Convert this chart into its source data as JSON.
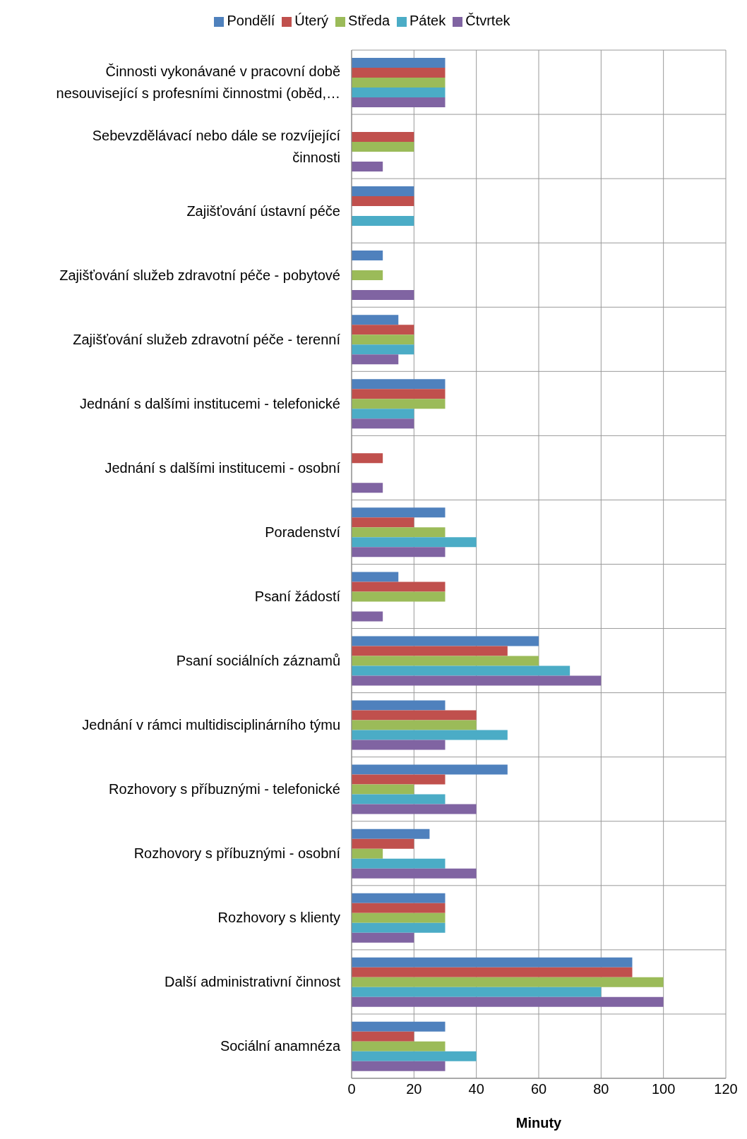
{
  "chart_data": {
    "type": "bar",
    "orientation": "horizontal",
    "xlabel": "Minuty",
    "xlim": [
      0,
      120
    ],
    "xticks": [
      0,
      20,
      40,
      60,
      80,
      100,
      120
    ],
    "grid": true,
    "legend": "top",
    "categories": [
      "Činnosti vykonávané v pracovní době nesouvisející s profesními činnostmi (oběd,…",
      "Sebevzdělávací nebo dále se rozvíjející činnosti",
      "Zajišťování ústavní péče",
      "Zajišťování služeb zdravotní péče - pobytové",
      "Zajišťování služeb zdravotní péče - terenní",
      "Jednání s dalšími institucemi - telefonické",
      "Jednání s dalšími institucemi - osobní",
      "Poradenství",
      "Psaní žádostí",
      "Psaní sociálních záznamů",
      "Jednání v rámci multidisciplinárního týmu",
      "Rozhovory s příbuznými - telefonické",
      "Rozhovory s příbuznými - osobní",
      "Rozhovory s klienty",
      "Další administrativní činnost",
      "Sociální anamnéza"
    ],
    "series": [
      {
        "name": "Pondělí",
        "color": "#4f81bd",
        "values": [
          30,
          null,
          20,
          10,
          15,
          30,
          null,
          30,
          15,
          60,
          30,
          50,
          25,
          30,
          90,
          30
        ]
      },
      {
        "name": "Úterý",
        "color": "#c0504d",
        "values": [
          30,
          20,
          20,
          null,
          20,
          30,
          10,
          20,
          30,
          50,
          40,
          30,
          20,
          30,
          90,
          20
        ]
      },
      {
        "name": "Středa",
        "color": "#9bbb59",
        "values": [
          30,
          20,
          null,
          10,
          20,
          30,
          null,
          30,
          30,
          60,
          40,
          20,
          10,
          30,
          100,
          30
        ]
      },
      {
        "name": "Pátek",
        "color": "#4bacc6",
        "values": [
          30,
          null,
          20,
          null,
          20,
          20,
          null,
          40,
          null,
          70,
          50,
          30,
          30,
          30,
          80,
          40
        ]
      },
      {
        "name": "Čtvrtek",
        "color": "#8064a2",
        "values": [
          30,
          10,
          null,
          20,
          15,
          20,
          10,
          30,
          10,
          80,
          30,
          40,
          40,
          20,
          100,
          30
        ]
      }
    ]
  }
}
